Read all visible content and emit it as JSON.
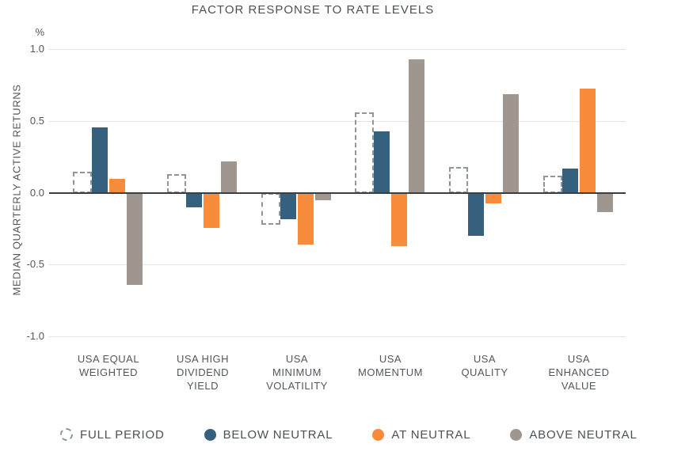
{
  "chart_data": {
    "type": "bar",
    "title": "FACTOR RESPONSE TO RATE LEVELS",
    "ylabel": "MEDIAN QUARTERLY ACTIVE RETURNS",
    "y_unit_label": "%",
    "ylim": [
      -1.0,
      1.0
    ],
    "yticks": [
      {
        "value": 1.0,
        "label": "1.0"
      },
      {
        "value": 0.5,
        "label": "0.5"
      },
      {
        "value": 0.0,
        "label": "0.0"
      },
      {
        "value": -0.5,
        "label": "-0.5"
      },
      {
        "value": -1.0,
        "label": "-1.0"
      }
    ],
    "grid": true,
    "legend_position": "bottom",
    "categories": [
      "USA EQUAL\nWEIGHTED",
      "USA HIGH\nDIVIDEND\nYIELD",
      "USA\nMINIMUM\nVOLATILITY",
      "USA\nMOMENTUM",
      "USA\nQUALITY",
      "USA\nENHANCED\nVALUE"
    ],
    "series": [
      {
        "name": "FULL PERIOD",
        "swatch": "dashed-outline",
        "color": "#8f969c",
        "values": [
          0.15,
          0.13,
          -0.22,
          0.56,
          0.18,
          0.12
        ]
      },
      {
        "name": "BELOW NEUTRAL",
        "swatch": "solid",
        "color": "#35607e",
        "values": [
          0.46,
          -0.1,
          -0.18,
          0.43,
          -0.3,
          0.17
        ]
      },
      {
        "name": "AT NEUTRAL",
        "swatch": "solid",
        "color": "#f78c3d",
        "values": [
          0.1,
          -0.24,
          -0.36,
          -0.37,
          -0.07,
          0.73
        ]
      },
      {
        "name": "ABOVE NEUTRAL",
        "swatch": "solid",
        "color": "#9e968f",
        "values": [
          -0.64,
          0.22,
          -0.05,
          0.93,
          0.69,
          -0.13
        ]
      }
    ]
  }
}
